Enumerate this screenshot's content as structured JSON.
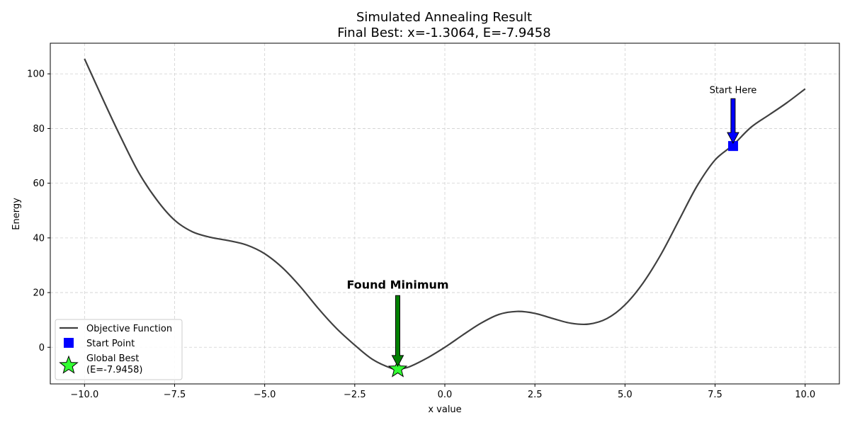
{
  "chart_data": {
    "type": "line",
    "title": "Simulated Annealing Result",
    "subtitle": "Final Best: x=-1.3064, E=-7.9458",
    "xlabel": "x value",
    "ylabel": "Energy",
    "xlim": [
      -10.95,
      10.95
    ],
    "ylim": [
      -13.4,
      111.2
    ],
    "x_ticks": [
      -10.0,
      -7.5,
      -5.0,
      -2.5,
      0.0,
      2.5,
      5.0,
      7.5,
      10.0
    ],
    "y_ticks": [
      0,
      20,
      40,
      60,
      80,
      100
    ],
    "grid": true,
    "legend_position": "lower-left",
    "series": [
      {
        "name": "Objective Function",
        "color": "#404040",
        "points": [
          [
            -10.0,
            105.5
          ],
          [
            -9.5,
            91.0
          ],
          [
            -9.0,
            77.0
          ],
          [
            -8.5,
            64.0
          ],
          [
            -8.0,
            54.0
          ],
          [
            -7.5,
            46.5
          ],
          [
            -7.0,
            42.2
          ],
          [
            -6.5,
            40.2
          ],
          [
            -6.0,
            39.0
          ],
          [
            -5.5,
            37.4
          ],
          [
            -5.0,
            34.2
          ],
          [
            -4.5,
            29.0
          ],
          [
            -4.0,
            22.0
          ],
          [
            -3.5,
            14.0
          ],
          [
            -3.0,
            6.8
          ],
          [
            -2.5,
            0.8
          ],
          [
            -2.0,
            -4.5
          ],
          [
            -1.5,
            -7.6
          ],
          [
            -1.3,
            -7.95
          ],
          [
            -1.0,
            -7.2
          ],
          [
            -0.5,
            -4.0
          ],
          [
            0.0,
            0.0
          ],
          [
            0.5,
            4.5
          ],
          [
            1.0,
            8.8
          ],
          [
            1.5,
            12.0
          ],
          [
            2.0,
            13.1
          ],
          [
            2.5,
            12.4
          ],
          [
            3.0,
            10.5
          ],
          [
            3.5,
            8.8
          ],
          [
            4.0,
            8.5
          ],
          [
            4.5,
            10.5
          ],
          [
            5.0,
            15.5
          ],
          [
            5.5,
            23.5
          ],
          [
            6.0,
            34.0
          ],
          [
            6.5,
            46.5
          ],
          [
            7.0,
            59.0
          ],
          [
            7.5,
            68.5
          ],
          [
            8.0,
            74.0
          ],
          [
            8.5,
            80.5
          ],
          [
            9.0,
            85.0
          ],
          [
            9.5,
            89.5
          ],
          [
            10.0,
            94.5
          ]
        ]
      },
      {
        "name": "Start Point",
        "color": "#0000ff",
        "marker": "square",
        "points": [
          [
            8.0,
            73.6
          ]
        ]
      },
      {
        "name": "Global Best\n(E=-7.9458)",
        "color": "#33ff33",
        "marker": "star",
        "points": [
          [
            -1.3064,
            -7.9458
          ]
        ]
      }
    ],
    "annotations": [
      {
        "text": "Start Here",
        "x": 8.0,
        "y": 73.6,
        "text_y": 93.0,
        "arrow_color": "#0000ff",
        "bold": false
      },
      {
        "text": "Found Minimum",
        "x": -1.3064,
        "y": -7.9458,
        "text_y": 21.5,
        "arrow_color": "#008000",
        "bold": true
      }
    ]
  }
}
